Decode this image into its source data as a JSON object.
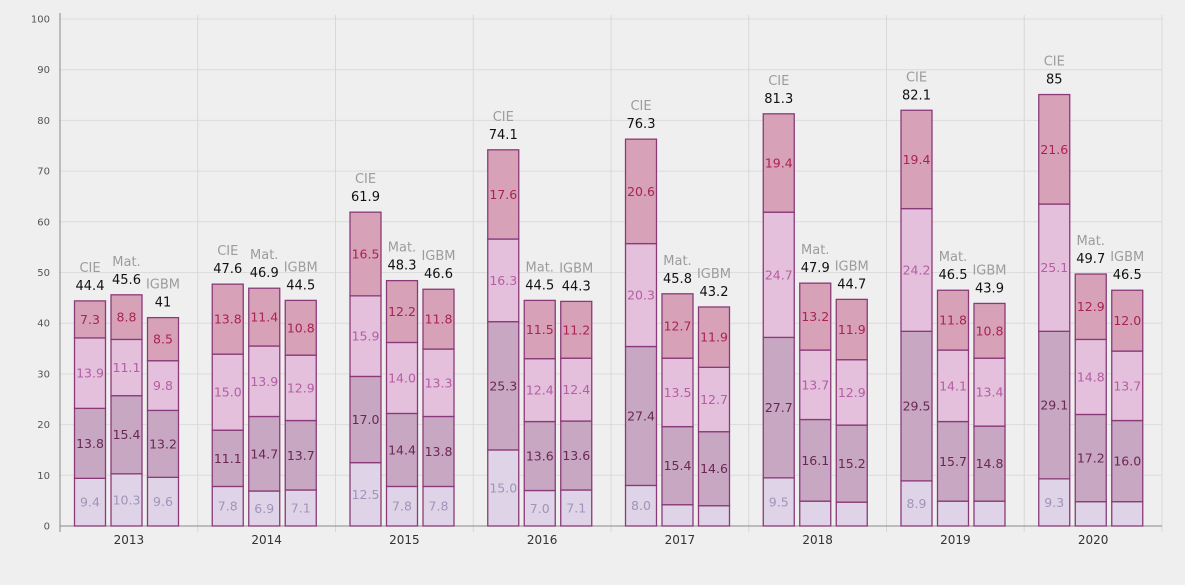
{
  "chart_data": {
    "type": "bar",
    "stacked": true,
    "title": "",
    "xlabel": "",
    "ylabel": "",
    "ylim": [
      0,
      100
    ],
    "y_ticks": [
      0,
      10,
      20,
      30,
      40,
      50,
      60,
      70,
      80,
      90,
      100
    ],
    "grid": true,
    "legend": "none",
    "segment_colors": [
      "#dfd3e7",
      "#c8a7c3",
      "#e4c0dc",
      "#d7a2b8"
    ],
    "label_colors": [
      "#a094bb",
      "#6b2754",
      "#b45ea4",
      "#a92350"
    ],
    "bar_edge_color": "#8a3a78",
    "groups": [
      {
        "year": "2013",
        "bars": [
          {
            "label": "CIE",
            "total": "44.4",
            "segments": [
              9.4,
              13.8,
              13.9,
              7.3
            ],
            "segment_labels": [
              "9.4",
              "13.8",
              "13.9",
              "7.3"
            ]
          },
          {
            "label": "Mat.",
            "total": "45.6",
            "segments": [
              10.3,
              15.4,
              11.1,
              8.8
            ],
            "segment_labels": [
              "10.3",
              "15.4",
              "11.1",
              "8.8"
            ]
          },
          {
            "label": "IGBM",
            "total": "41",
            "segments": [
              9.6,
              13.2,
              9.8,
              8.5
            ],
            "segment_labels": [
              "9.6",
              "13.2",
              "9.8",
              "8.5"
            ]
          }
        ]
      },
      {
        "year": "2014",
        "bars": [
          {
            "label": "CIE",
            "total": "47.6",
            "segments": [
              7.8,
              11.1,
              15.0,
              13.8
            ],
            "segment_labels": [
              "7.8",
              "11.1",
              "15.0",
              "13.8"
            ]
          },
          {
            "label": "Mat.",
            "total": "46.9",
            "segments": [
              6.9,
              14.7,
              13.9,
              11.4
            ],
            "segment_labels": [
              "6.9",
              "14.7",
              "13.9",
              "11.4"
            ]
          },
          {
            "label": "IGBM",
            "total": "44.5",
            "segments": [
              7.1,
              13.7,
              12.9,
              10.8
            ],
            "segment_labels": [
              "7.1",
              "13.7",
              "12.9",
              "10.8"
            ]
          }
        ]
      },
      {
        "year": "2015",
        "bars": [
          {
            "label": "CIE",
            "total": "61.9",
            "segments": [
              12.5,
              17.0,
              15.9,
              16.5
            ],
            "segment_labels": [
              "12.5",
              "17.0",
              "15.9",
              "16.5"
            ]
          },
          {
            "label": "Mat.",
            "total": "48.3",
            "segments": [
              7.8,
              14.4,
              14.0,
              12.2
            ],
            "segment_labels": [
              "7.8",
              "14.4",
              "14.0",
              "12.2"
            ]
          },
          {
            "label": "IGBM",
            "total": "46.6",
            "segments": [
              7.8,
              13.8,
              13.3,
              11.8
            ],
            "segment_labels": [
              "7.8",
              "13.8",
              "13.3",
              "11.8"
            ]
          }
        ]
      },
      {
        "year": "2016",
        "bars": [
          {
            "label": "CIE",
            "total": "74.1",
            "segments": [
              15.0,
              25.3,
              16.3,
              17.6
            ],
            "segment_labels": [
              "15.0",
              "25.3",
              "16.3",
              "17.6"
            ]
          },
          {
            "label": "Mat.",
            "total": "44.5",
            "segments": [
              7.0,
              13.6,
              12.4,
              11.5
            ],
            "segment_labels": [
              "7.0",
              "13.6",
              "12.4",
              "11.5"
            ]
          },
          {
            "label": "IGBM",
            "total": "44.3",
            "segments": [
              7.1,
              13.6,
              12.4,
              11.2
            ],
            "segment_labels": [
              "7.1",
              "13.6",
              "12.4",
              "11.2"
            ]
          }
        ]
      },
      {
        "year": "2017",
        "bars": [
          {
            "label": "CIE",
            "total": "76.3",
            "segments": [
              8.0,
              27.4,
              20.3,
              20.6
            ],
            "segment_labels": [
              "8.0",
              "27.4",
              "20.3",
              "20.6"
            ]
          },
          {
            "label": "Mat.",
            "total": "45.8",
            "segments": [
              4.2,
              15.4,
              13.5,
              12.7
            ],
            "segment_labels": [
              "",
              "15.4",
              "13.5",
              "12.7"
            ]
          },
          {
            "label": "IGBM",
            "total": "43.2",
            "segments": [
              4.0,
              14.6,
              12.7,
              11.9
            ],
            "segment_labels": [
              "",
              "14.6",
              "12.7",
              "11.9"
            ]
          }
        ]
      },
      {
        "year": "2018",
        "bars": [
          {
            "label": "CIE",
            "total": "81.3",
            "segments": [
              9.5,
              27.7,
              24.7,
              19.4
            ],
            "segment_labels": [
              "9.5",
              "27.7",
              "24.7",
              "19.4"
            ]
          },
          {
            "label": "Mat.",
            "total": "47.9",
            "segments": [
              4.9,
              16.1,
              13.7,
              13.2
            ],
            "segment_labels": [
              "",
              "16.1",
              "13.7",
              "13.2"
            ]
          },
          {
            "label": "IGBM",
            "total": "44.7",
            "segments": [
              4.7,
              15.2,
              12.9,
              11.9
            ],
            "segment_labels": [
              "",
              "15.2",
              "12.9",
              "11.9"
            ]
          }
        ]
      },
      {
        "year": "2019",
        "bars": [
          {
            "label": "CIE",
            "total": "82.1",
            "segments": [
              8.9,
              29.5,
              24.2,
              19.4
            ],
            "segment_labels": [
              "8.9",
              "29.5",
              "24.2",
              "19.4"
            ]
          },
          {
            "label": "Mat.",
            "total": "46.5",
            "segments": [
              4.9,
              15.7,
              14.1,
              11.8
            ],
            "segment_labels": [
              "",
              "15.7",
              "14.1",
              "11.8"
            ]
          },
          {
            "label": "IGBM",
            "total": "43.9",
            "segments": [
              4.9,
              14.8,
              13.4,
              10.8
            ],
            "segment_labels": [
              "",
              "14.8",
              "13.4",
              "10.8"
            ]
          }
        ]
      },
      {
        "year": "2020",
        "bars": [
          {
            "label": "CIE",
            "total": "85",
            "segments": [
              9.3,
              29.1,
              25.1,
              21.6
            ],
            "segment_labels": [
              "9.3",
              "29.1",
              "25.1",
              "21.6"
            ]
          },
          {
            "label": "Mat.",
            "total": "49.7",
            "segments": [
              4.8,
              17.2,
              14.8,
              12.9
            ],
            "segment_labels": [
              "",
              "17.2",
              "14.8",
              "12.9"
            ]
          },
          {
            "label": "IGBM",
            "total": "46.5",
            "segments": [
              4.8,
              16.0,
              13.7,
              12.0
            ],
            "segment_labels": [
              "",
              "16.0",
              "13.7",
              "12.0"
            ]
          }
        ]
      }
    ]
  }
}
